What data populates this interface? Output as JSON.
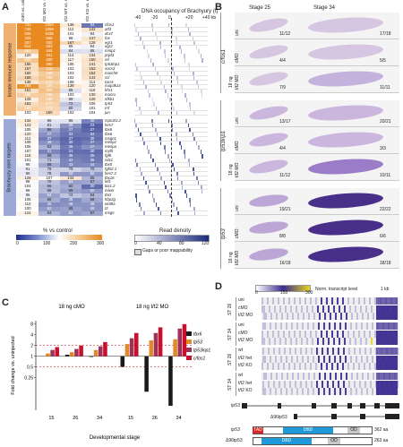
{
  "panel_a": {
    "letter": "A",
    "col_headers": [
      "cMO vs. uni",
      "t/t2 MO vs. uni",
      "t/t2 WT vs. uni",
      "t/t2 KO vs. uni"
    ],
    "track_title": "DNA occupancy of Brachyury (t)",
    "track_ticks": [
      "-40",
      "-20",
      "0",
      "+20",
      "+40 kb"
    ],
    "group1_label": "Innate immune response",
    "group2_label": "Brachyury core targets",
    "group1_rows": [
      {
        "v": [
          "733",
          "1054",
          "136",
          "34"
        ],
        "g": "cfos1"
      },
      {
        "v": [
          "738",
          "1059",
          "112",
          "142"
        ],
        "g": "atf3"
      },
      {
        "v": [
          "506",
          "1035",
          "101",
          "94"
        ],
        "g": "dcx7"
      },
      {
        "v": [
          "426",
          "666",
          "96",
          "147"
        ],
        "g": "fos"
      },
      {
        "v": [
          "307",
          "400",
          "167",
          "128"
        ],
        "g": "egr1"
      },
      {
        "v": [
          "614",
          "463",
          "96",
          "94"
        ],
        "g": "egr2"
      },
      {
        "v": [
          "187",
          "445",
          "84",
          "85"
        ],
        "g": "mmp1"
      },
      {
        "v": [
          "120",
          "441",
          "114",
          "134"
        ],
        "g": "jmjd3"
      },
      {
        "v": [
          "200",
          "330",
          "117",
          "150"
        ],
        "g": "rel"
      },
      {
        "v": [
          "156",
          "390",
          "106",
          "141"
        ],
        "g": "tp53inp1"
      },
      {
        "v": [
          "157",
          "219",
          "102",
          "153"
        ],
        "g": "socs3"
      },
      {
        "v": [
          "150",
          "188",
          "103",
          "152"
        ],
        "g": "march6"
      },
      {
        "v": [
          "168",
          "200",
          "102",
          "144"
        ],
        "g": "ccl"
      },
      {
        "v": [
          "138",
          "174",
          "108",
          "114"
        ],
        "g": "tacr4"
      },
      {
        "v": [
          "284",
          "196",
          "138",
          "120"
        ],
        "g": "map3k14"
      },
      {
        "v": [
          "151",
          "209",
          "85",
          "118"
        ],
        "g": "hhr1"
      },
      {
        "v": [
          "185",
          "186",
          "103",
          "130"
        ],
        "g": "macro"
      },
      {
        "v": [
          "128",
          "186",
          "89",
          "128"
        ],
        "g": "nfkb1"
      },
      {
        "v": [
          "162",
          "177",
          "72",
          "106"
        ],
        "g": "tp53"
      },
      {
        "v": [
          "180",
          "172",
          "80",
          "101"
        ],
        "g": "rnf"
      },
      {
        "v": [
          "102",
          "160",
          "102",
          "104"
        ],
        "g": "jun"
      }
    ],
    "group2_rows": [
      {
        "v": [
          "134",
          "86",
          "86",
          "40"
        ],
        "g": "rspo3/2.2"
      },
      {
        "v": [
          "123",
          "81",
          "48",
          "23"
        ],
        "g": "hes7"
      },
      {
        "v": [
          "105",
          "56",
          "37",
          "27"
        ],
        "g": "tbx6"
      },
      {
        "v": [
          "120",
          "47",
          "33",
          "34"
        ],
        "g": "tbx6"
      },
      {
        "v": [
          "112",
          "37",
          "27",
          "30"
        ],
        "g": "msgn1"
      },
      {
        "v": [
          "108",
          "48",
          "30",
          "37"
        ],
        "g": "mesp2"
      },
      {
        "v": [
          "106",
          "63",
          "36",
          "47"
        ],
        "g": "mespa"
      },
      {
        "v": [
          "107",
          "41",
          "31",
          "30"
        ],
        "g": "myf5"
      },
      {
        "v": [
          "118",
          "58",
          "36",
          "35"
        ],
        "g": "fgf8"
      },
      {
        "v": [
          "101",
          "71",
          "42",
          "36"
        ],
        "g": "cdx1"
      },
      {
        "v": [
          "96",
          "58",
          "43",
          "44"
        ],
        "g": "tbx5"
      },
      {
        "v": [
          "91",
          "78",
          "79",
          "70"
        ],
        "g": "fgfrl2.1"
      },
      {
        "v": [
          "90",
          "78",
          "50",
          "50"
        ],
        "g": "hes7.2"
      },
      {
        "v": [
          "126",
          "107",
          "144",
          "65"
        ],
        "g": "tbx16"
      },
      {
        "v": [
          "98",
          "70",
          "54",
          "57"
        ],
        "g": "lef1"
      },
      {
        "v": [
          "104",
          "66",
          "60",
          "30"
        ],
        "g": "bix1.2"
      },
      {
        "v": [
          "96",
          "68",
          "55",
          "50"
        ],
        "g": "mixer"
      },
      {
        "v": [
          "95",
          "54",
          "72",
          "64"
        ],
        "g": "tbxt"
      },
      {
        "v": [
          "105",
          "60",
          "45",
          "58"
        ],
        "g": "hbp2g"
      },
      {
        "v": [
          "110",
          "45",
          "48",
          "48"
        ],
        "g": "wnt8a"
      },
      {
        "v": [
          "100",
          "52",
          "55",
          "48"
        ],
        "g": "t2"
      },
      {
        "v": [
          "124",
          "64",
          "52",
          "57"
        ],
        "g": "msgn"
      }
    ],
    "legend_pct_label": "% vs control",
    "legend_pct_ticks": [
      "0",
      "100",
      "200",
      "300"
    ],
    "legend_read_label": "Read density",
    "legend_read_ticks": [
      "0",
      "40",
      "80",
      "120"
    ],
    "legend_gap_label": "Gaps or poor mappability"
  },
  "panel_b": {
    "letter": "B",
    "stage_left": "Stage 25",
    "stage_right": "Stage 34",
    "groups": [
      {
        "gene": "c/fos1",
        "dose": "18 ng",
        "rows": [
          {
            "label": "uni",
            "left": "11/12",
            "right": "17/18"
          },
          {
            "label": "cMO",
            "left": "4/4",
            "right": "5/5"
          },
          {
            "label": "t/t2 MO",
            "left": "7/9",
            "right": "11/11"
          }
        ]
      },
      {
        "gene": "tp53inp1",
        "dose": "18 ng",
        "rows": [
          {
            "label": "uni",
            "left": "13/17",
            "right": "20/21"
          },
          {
            "label": "cMO",
            "left": "4/4",
            "right": "3/3"
          },
          {
            "label": "t/t2 MO",
            "left": "11/12",
            "right": "10/11"
          }
        ]
      },
      {
        "gene": "tp53",
        "dose": "18 ng",
        "rows": [
          {
            "label": "uni",
            "left": "19/21",
            "right": "22/22"
          },
          {
            "label": "cMO",
            "left": "8/8",
            "right": "6/6"
          },
          {
            "label": "t/t2 MO",
            "left": "16/18",
            "right": "18/18"
          }
        ]
      }
    ]
  },
  "panel_c": {
    "letter": "C",
    "title_left": "18 ng cMO",
    "title_right": "18 ng t/t2 MO",
    "ylabel": "Fold change vs. uninjected",
    "xlabel": "Developmental stage",
    "legend": [
      "tbx6",
      "tp53",
      "tp53inp1",
      "c/fos1"
    ],
    "colors": [
      "#1a1a1a",
      "#e08a2a",
      "#a0325a",
      "#c8102e"
    ],
    "y_ticks": [
      "0.25",
      "0.5",
      "1",
      "2",
      "4",
      "8"
    ]
  },
  "chart_data": {
    "type": "bar",
    "categories": [
      "15",
      "26",
      "34",
      "15",
      "26",
      "34"
    ],
    "series": [
      {
        "name": "tbx6",
        "values": [
          1.0,
          1.1,
          0.95,
          0.5,
          0.1,
          0.04
        ]
      },
      {
        "name": "tp53",
        "values": [
          1.2,
          1.3,
          1.5,
          2.2,
          2.8,
          3.0
        ]
      },
      {
        "name": "tp53inp1",
        "values": [
          1.5,
          1.6,
          1.9,
          3.2,
          4.5,
          6.0
        ]
      },
      {
        "name": "c/fos1",
        "values": [
          1.8,
          2.0,
          2.5,
          4.5,
          6.5,
          8.0
        ]
      }
    ],
    "title": "18 ng cMO / 18 ng t/t2 MO",
    "xlabel": "Developmental stage",
    "ylabel": "Fold change vs. uninjected",
    "ylim": [
      0.03,
      10
    ]
  },
  "panel_d": {
    "letter": "D",
    "legend_ticks": [
      "0",
      "150",
      "300"
    ],
    "legend_label": "Norm. transcript level",
    "scale_label": "1 kb",
    "rows": [
      {
        "stage": "ST 26",
        "labels": [
          "uni",
          "cMO",
          "t/t2 MO"
        ]
      },
      {
        "stage": "ST 34",
        "labels": [
          "uni",
          "cMO",
          "t/t2 MO"
        ]
      },
      {
        "stage": "ST 26",
        "labels": [
          "wt",
          "t/t2 het",
          "t/t2 KO"
        ]
      },
      {
        "stage": "ST 34",
        "labels": [
          "wt",
          "t/t2 het",
          "t/t2 KO"
        ]
      }
    ],
    "gene_model": "tp53",
    "isoform": "Δ96tp53",
    "protein1_name": "tp53",
    "protein1_len": "362 aa",
    "protein2_name": "Δ96tp53",
    "protein2_len": "263 aa",
    "domain_tad": "TAD",
    "domain_dbd": "DBD",
    "domain_od": "OD"
  }
}
